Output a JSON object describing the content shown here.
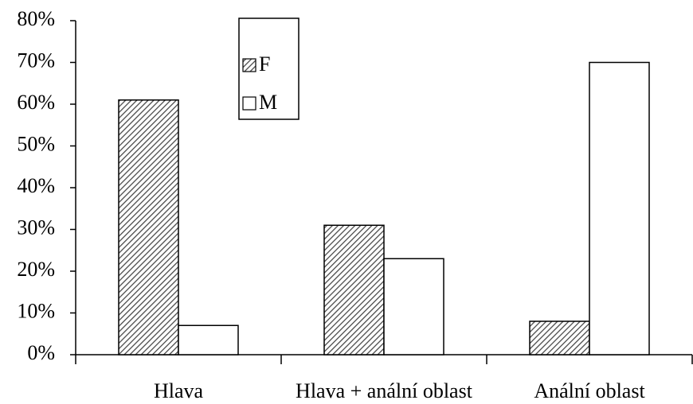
{
  "chart_data": {
    "type": "bar",
    "categories": [
      "Hlava",
      "Hlava + anální oblast",
      "Anální oblast"
    ],
    "series": [
      {
        "name": "F",
        "color": "#444444",
        "hatch": true,
        "values": [
          61,
          31,
          8
        ]
      },
      {
        "name": "M",
        "color": "#ffffff",
        "hatch": false,
        "values": [
          7,
          23,
          70
        ]
      }
    ],
    "ylim": [
      0,
      80
    ],
    "yticks": [
      {
        "value": 0,
        "label": "0%"
      },
      {
        "value": 10,
        "label": "10%"
      },
      {
        "value": 20,
        "label": "20%"
      },
      {
        "value": 30,
        "label": "30%"
      },
      {
        "value": 40,
        "label": "40%"
      },
      {
        "value": 50,
        "label": "50%"
      },
      {
        "value": 60,
        "label": "60%"
      },
      {
        "value": 70,
        "label": "70%"
      },
      {
        "value": 80,
        "label": "80%"
      }
    ],
    "grid": false,
    "legend": "top-center"
  }
}
